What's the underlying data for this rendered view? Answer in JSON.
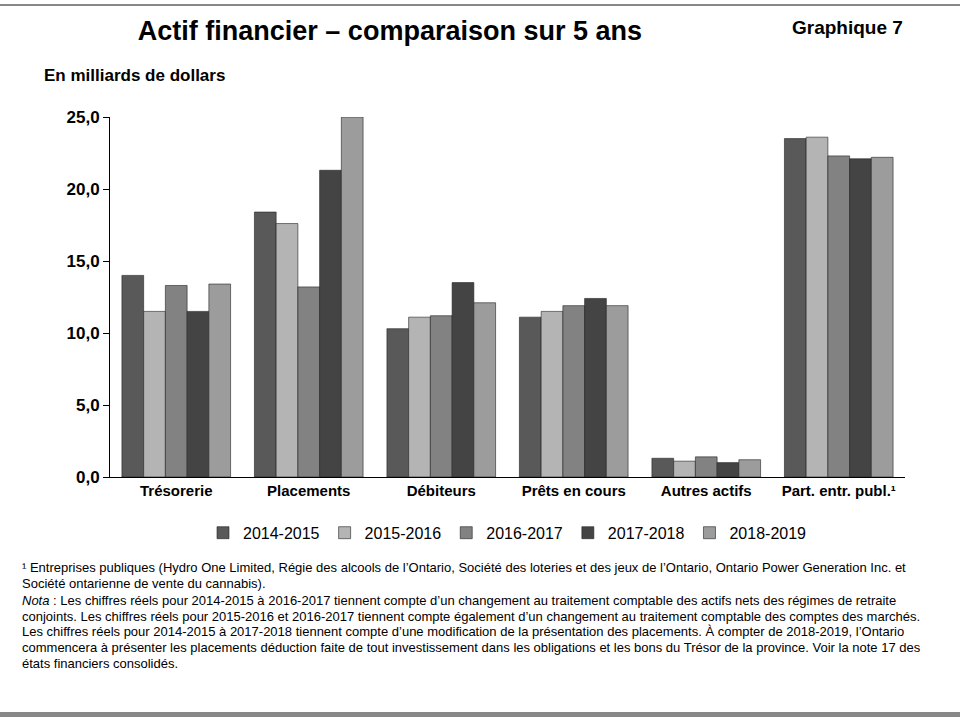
{
  "chart_data": {
    "type": "bar",
    "title": "Actif financier – comparaison sur 5 ans",
    "subtitle": "Graphique 7",
    "y_label": "En milliards de dollars",
    "categories": [
      "Trésorerie",
      "Placements",
      "Débiteurs",
      "Prêts en cours",
      "Autres actifs",
      "Part. entr. publ.¹"
    ],
    "series": [
      {
        "name": "2014-2015",
        "color": "#595959",
        "values": [
          14.0,
          18.4,
          10.3,
          11.1,
          1.3,
          23.5
        ]
      },
      {
        "name": "2015-2016",
        "color": "#b4b4b4",
        "values": [
          11.5,
          17.6,
          11.1,
          11.5,
          1.1,
          23.6
        ]
      },
      {
        "name": "2016-2017",
        "color": "#828282",
        "values": [
          13.3,
          13.2,
          11.2,
          11.9,
          1.4,
          22.3
        ]
      },
      {
        "name": "2017-2018",
        "color": "#444444",
        "values": [
          11.5,
          21.3,
          13.5,
          12.4,
          1.0,
          22.1
        ]
      },
      {
        "name": "2018-2019",
        "color": "#9c9c9c",
        "values": [
          13.4,
          25.0,
          12.1,
          11.9,
          1.2,
          22.2
        ]
      }
    ],
    "ylim": [
      0,
      25
    ],
    "yticks": [
      {
        "value": 0,
        "label": "0,0"
      },
      {
        "value": 5,
        "label": "5,0"
      },
      {
        "value": 10,
        "label": "10,0"
      },
      {
        "value": 15,
        "label": "15,0"
      },
      {
        "value": 20,
        "label": "20,0"
      },
      {
        "value": 25,
        "label": "25,0"
      }
    ],
    "grid": false,
    "legend": "bottom",
    "footnote": "¹ Entreprises publiques (Hydro One Limited, Régie des alcools de l’Ontario, Société des loteries et des jeux de l’Ontario, Ontario Power Generation Inc. et Société ontarienne de vente du cannabis).",
    "nota_label": "Nota",
    "nota_text": ": Les chiffres réels pour 2014-2015 à 2016-2017 tiennent compte d’un changement au traitement comptable des actifs nets des régimes de retraite conjoints. Les chiffres réels pour 2015-2016 et 2016-2017 tiennent compte également d’un changement au traitement comptable des comptes des marchés. Les chiffres réels pour 2014-2015 à 2017-2018 tiennent compte d’une modification de la présentation des placements. À compter de 2018-2019, l’Ontario commencera à présenter les placements déduction faite de tout investissement dans les obligations et les bons du Trésor de la province. Voir la note 17 des états financiers consolidés."
  }
}
